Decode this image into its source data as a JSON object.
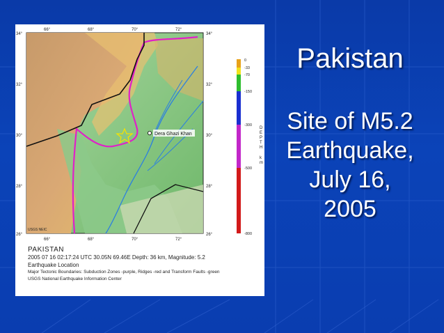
{
  "slide": {
    "title": "Pakistan",
    "subtitle_lines": [
      "Site of M5.2",
      "Earthquake,",
      "July 16,",
      "2005"
    ]
  },
  "map": {
    "lon_labels": [
      "66°",
      "68°",
      "70°",
      "72°"
    ],
    "lat_labels_left": [
      "34°",
      "32°",
      "30°",
      "28°",
      "26°"
    ],
    "lat_labels_right": [
      "34°",
      "32°",
      "30°",
      "28°",
      "26°"
    ],
    "city_label": "Dera Ghazi Khan",
    "credit": "USGS NEIC",
    "depth_scale": {
      "label_letters": [
        "D",
        "E",
        "P",
        "T",
        "H",
        "k",
        "m"
      ],
      "ticks": [
        "0",
        "-33",
        "-70",
        "-150",
        "-300",
        "-500",
        "-800"
      ],
      "colors": [
        "#e8a21a",
        "#f2e21c",
        "#2ebd2e",
        "#1a2fd0",
        "#c227c9",
        "#d21a1a"
      ]
    },
    "colors": {
      "subduction": "#e020c8",
      "ridges": "#d01010",
      "transform": "#2aa02a",
      "rivers": "#2b7fe0",
      "borders": "#101010"
    }
  },
  "caption": {
    "country": "PAKISTAN",
    "event_line": "2005 07 16 02:17:24 UTC 30.05N 69.46E Depth: 36 km, Magnitude: 5.2",
    "location_label": "Earthquake Location",
    "boundaries_line": "Major Tectonic Boundaries: Subduction Zones -purple, Ridges -red and Transform Faults -green",
    "agency": "USGS National Earthquake Information Center"
  },
  "colors": {
    "background": "#0b43b8",
    "text": "#ffffff"
  }
}
